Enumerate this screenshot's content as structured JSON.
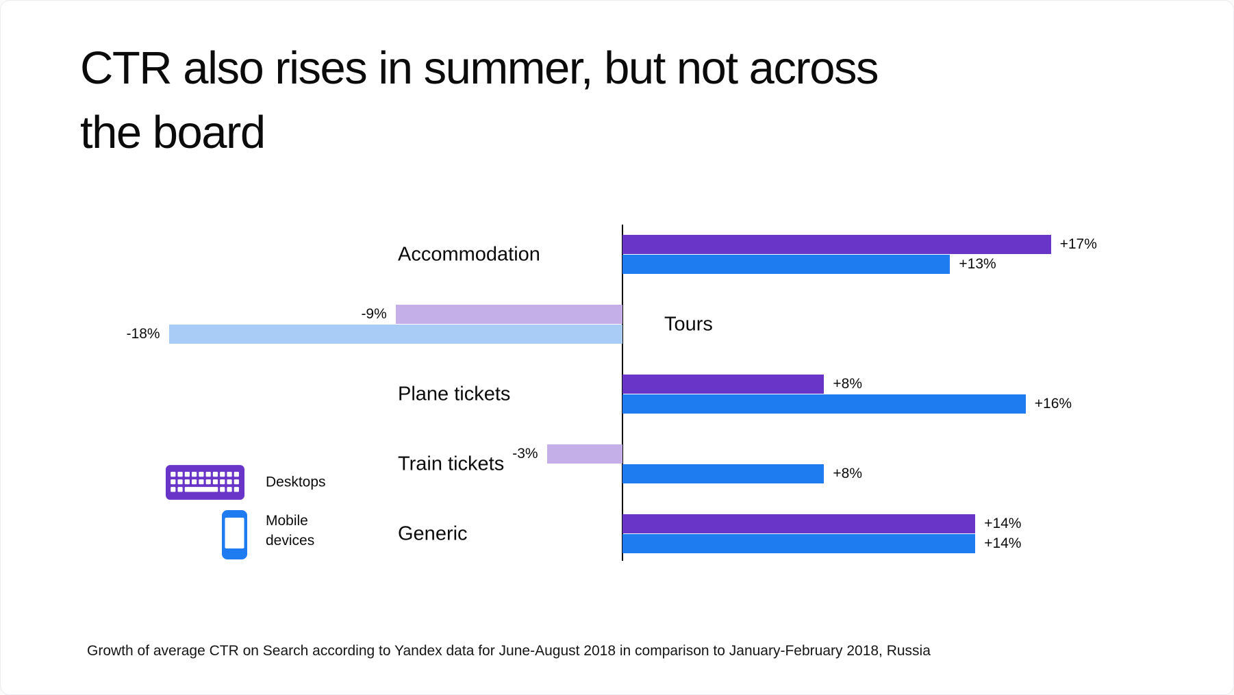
{
  "page": {
    "title_line1": "CTR also rises in summer, but not across",
    "title_line2": "the board",
    "caption": "Growth of average CTR on Search according to Yandex data for June-August 2018 in comparison to January-February 2018, Russia"
  },
  "legend": {
    "items": [
      {
        "label": "Desktops",
        "icon": "keyboard-icon",
        "color": "#6935C8"
      },
      {
        "label": "Mobile devices",
        "icon": "smartphone-icon",
        "color": "#1E7BF0"
      }
    ]
  },
  "chart_data": {
    "type": "bar",
    "orientation": "horizontal",
    "title": "CTR also rises in summer, but not across the board",
    "unit": "percent change in CTR",
    "categories": [
      "Accommodation",
      "Tours",
      "Plane tickets",
      "Train tickets",
      "Generic"
    ],
    "category_label_side": [
      "left",
      "right",
      "left",
      "left",
      "left"
    ],
    "series": [
      {
        "name": "Desktops",
        "values": [
          17,
          -9,
          8,
          -3,
          14
        ],
        "labels": [
          "+17%",
          "-9%",
          "+8%",
          "-3%",
          "+14%"
        ],
        "color_positive": "#6935C8",
        "color_negative": "#C5AFE9"
      },
      {
        "name": "Mobile devices",
        "values": [
          13,
          -18,
          16,
          8,
          14
        ],
        "labels": [
          "+13%",
          "-18%",
          "+16%",
          "+8%",
          "+14%"
        ],
        "color_positive": "#1E7BF0",
        "color_negative": "#A8CCF6"
      }
    ],
    "xlim": [
      -20,
      20
    ],
    "gridlines": false,
    "axis_color": "#000000",
    "legend_position": "bottom-left"
  }
}
